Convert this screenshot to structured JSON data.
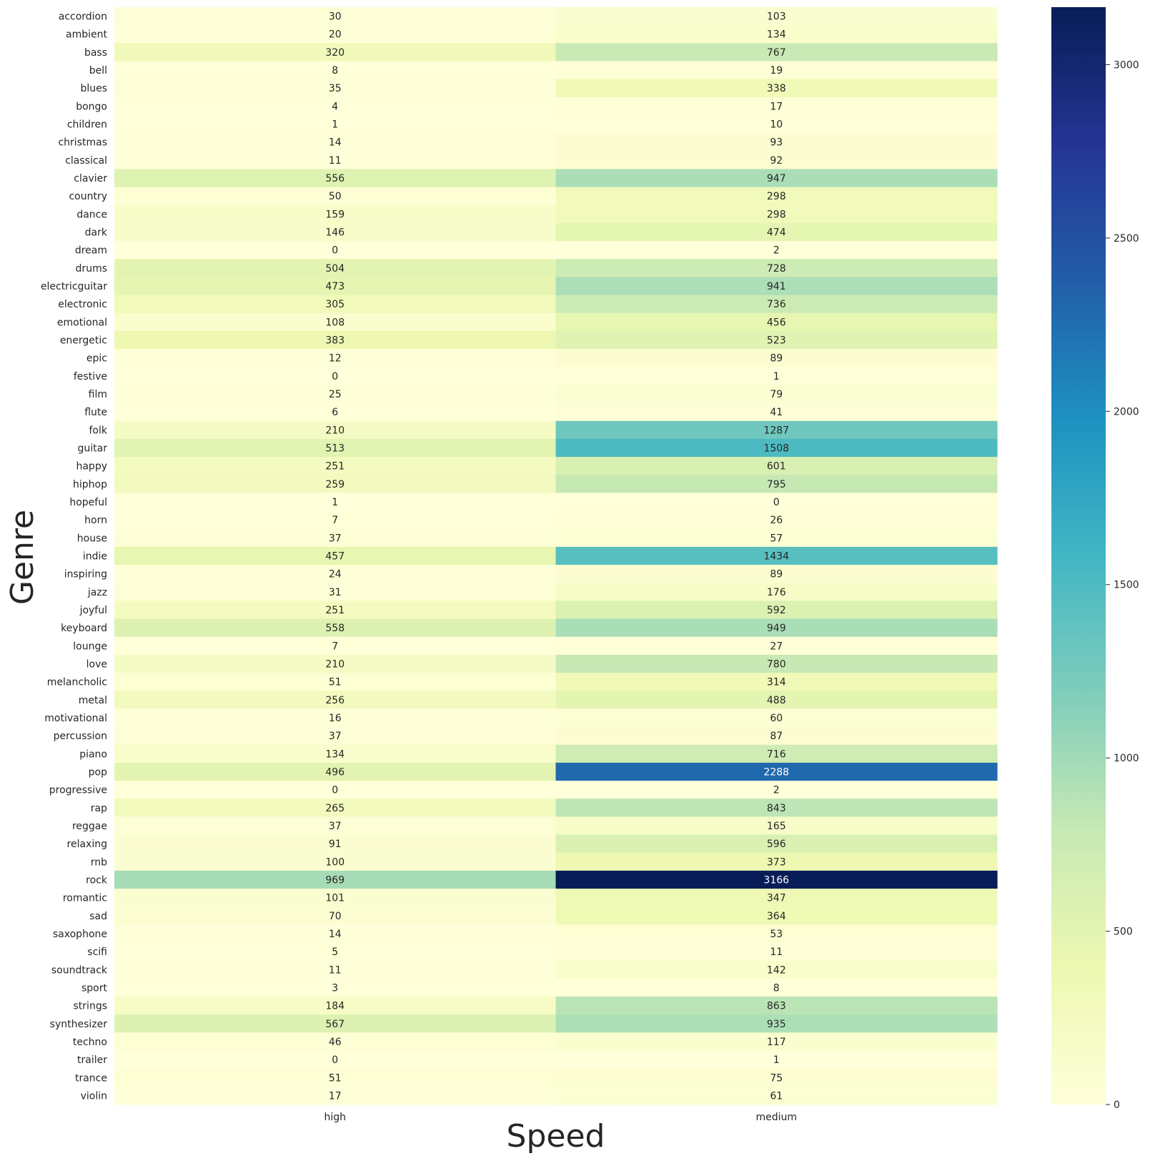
{
  "chart_data": {
    "type": "heatmap",
    "xlabel": "Speed",
    "ylabel": "Genre",
    "columns": [
      "high",
      "medium"
    ],
    "rows": [
      "accordion",
      "ambient",
      "bass",
      "bell",
      "blues",
      "bongo",
      "children",
      "christmas",
      "classical",
      "clavier",
      "country",
      "dance",
      "dark",
      "dream",
      "drums",
      "electricguitar",
      "electronic",
      "emotional",
      "energetic",
      "epic",
      "festive",
      "film",
      "flute",
      "folk",
      "guitar",
      "happy",
      "hiphop",
      "hopeful",
      "horn",
      "house",
      "indie",
      "inspiring",
      "jazz",
      "joyful",
      "keyboard",
      "lounge",
      "love",
      "melancholic",
      "metal",
      "motivational",
      "percussion",
      "piano",
      "pop",
      "progressive",
      "rap",
      "reggae",
      "relaxing",
      "rnb",
      "rock",
      "romantic",
      "sad",
      "saxophone",
      "scifi",
      "soundtrack",
      "sport",
      "strings",
      "synthesizer",
      "techno",
      "trailer",
      "trance",
      "violin"
    ],
    "values": [
      [
        30,
        103
      ],
      [
        20,
        134
      ],
      [
        320,
        767
      ],
      [
        8,
        19
      ],
      [
        35,
        338
      ],
      [
        4,
        17
      ],
      [
        1,
        10
      ],
      [
        14,
        93
      ],
      [
        11,
        92
      ],
      [
        556,
        947
      ],
      [
        50,
        298
      ],
      [
        159,
        298
      ],
      [
        146,
        474
      ],
      [
        0,
        2
      ],
      [
        504,
        728
      ],
      [
        473,
        941
      ],
      [
        305,
        736
      ],
      [
        108,
        456
      ],
      [
        383,
        523
      ],
      [
        12,
        89
      ],
      [
        0,
        1
      ],
      [
        25,
        79
      ],
      [
        6,
        41
      ],
      [
        210,
        1287
      ],
      [
        513,
        1508
      ],
      [
        251,
        601
      ],
      [
        259,
        795
      ],
      [
        1,
        0
      ],
      [
        7,
        26
      ],
      [
        37,
        57
      ],
      [
        457,
        1434
      ],
      [
        24,
        89
      ],
      [
        31,
        176
      ],
      [
        251,
        592
      ],
      [
        558,
        949
      ],
      [
        7,
        27
      ],
      [
        210,
        780
      ],
      [
        51,
        314
      ],
      [
        256,
        488
      ],
      [
        16,
        60
      ],
      [
        37,
        87
      ],
      [
        134,
        716
      ],
      [
        496,
        2288
      ],
      [
        0,
        2
      ],
      [
        265,
        843
      ],
      [
        37,
        165
      ],
      [
        91,
        596
      ],
      [
        100,
        373
      ],
      [
        969,
        3166
      ],
      [
        101,
        347
      ],
      [
        70,
        364
      ],
      [
        14,
        53
      ],
      [
        5,
        11
      ],
      [
        11,
        142
      ],
      [
        3,
        8
      ],
      [
        184,
        863
      ],
      [
        567,
        935
      ],
      [
        46,
        117
      ],
      [
        0,
        1
      ],
      [
        51,
        75
      ],
      [
        17,
        61
      ]
    ],
    "colormap": "YlGnBu",
    "vmin": 0,
    "vmax": 3166,
    "colorbar_ticks": [
      0,
      500,
      1000,
      1500,
      2000,
      2500,
      3000
    ],
    "annotated": true
  },
  "colors": {
    "text_dark": "#262626",
    "text_light": "#ffffff",
    "scale": [
      "#ffffd9",
      "#edf8b1",
      "#c7e9b4",
      "#7fcdbb",
      "#41b6c4",
      "#1d91c0",
      "#225ea8",
      "#253494",
      "#081d58"
    ]
  }
}
